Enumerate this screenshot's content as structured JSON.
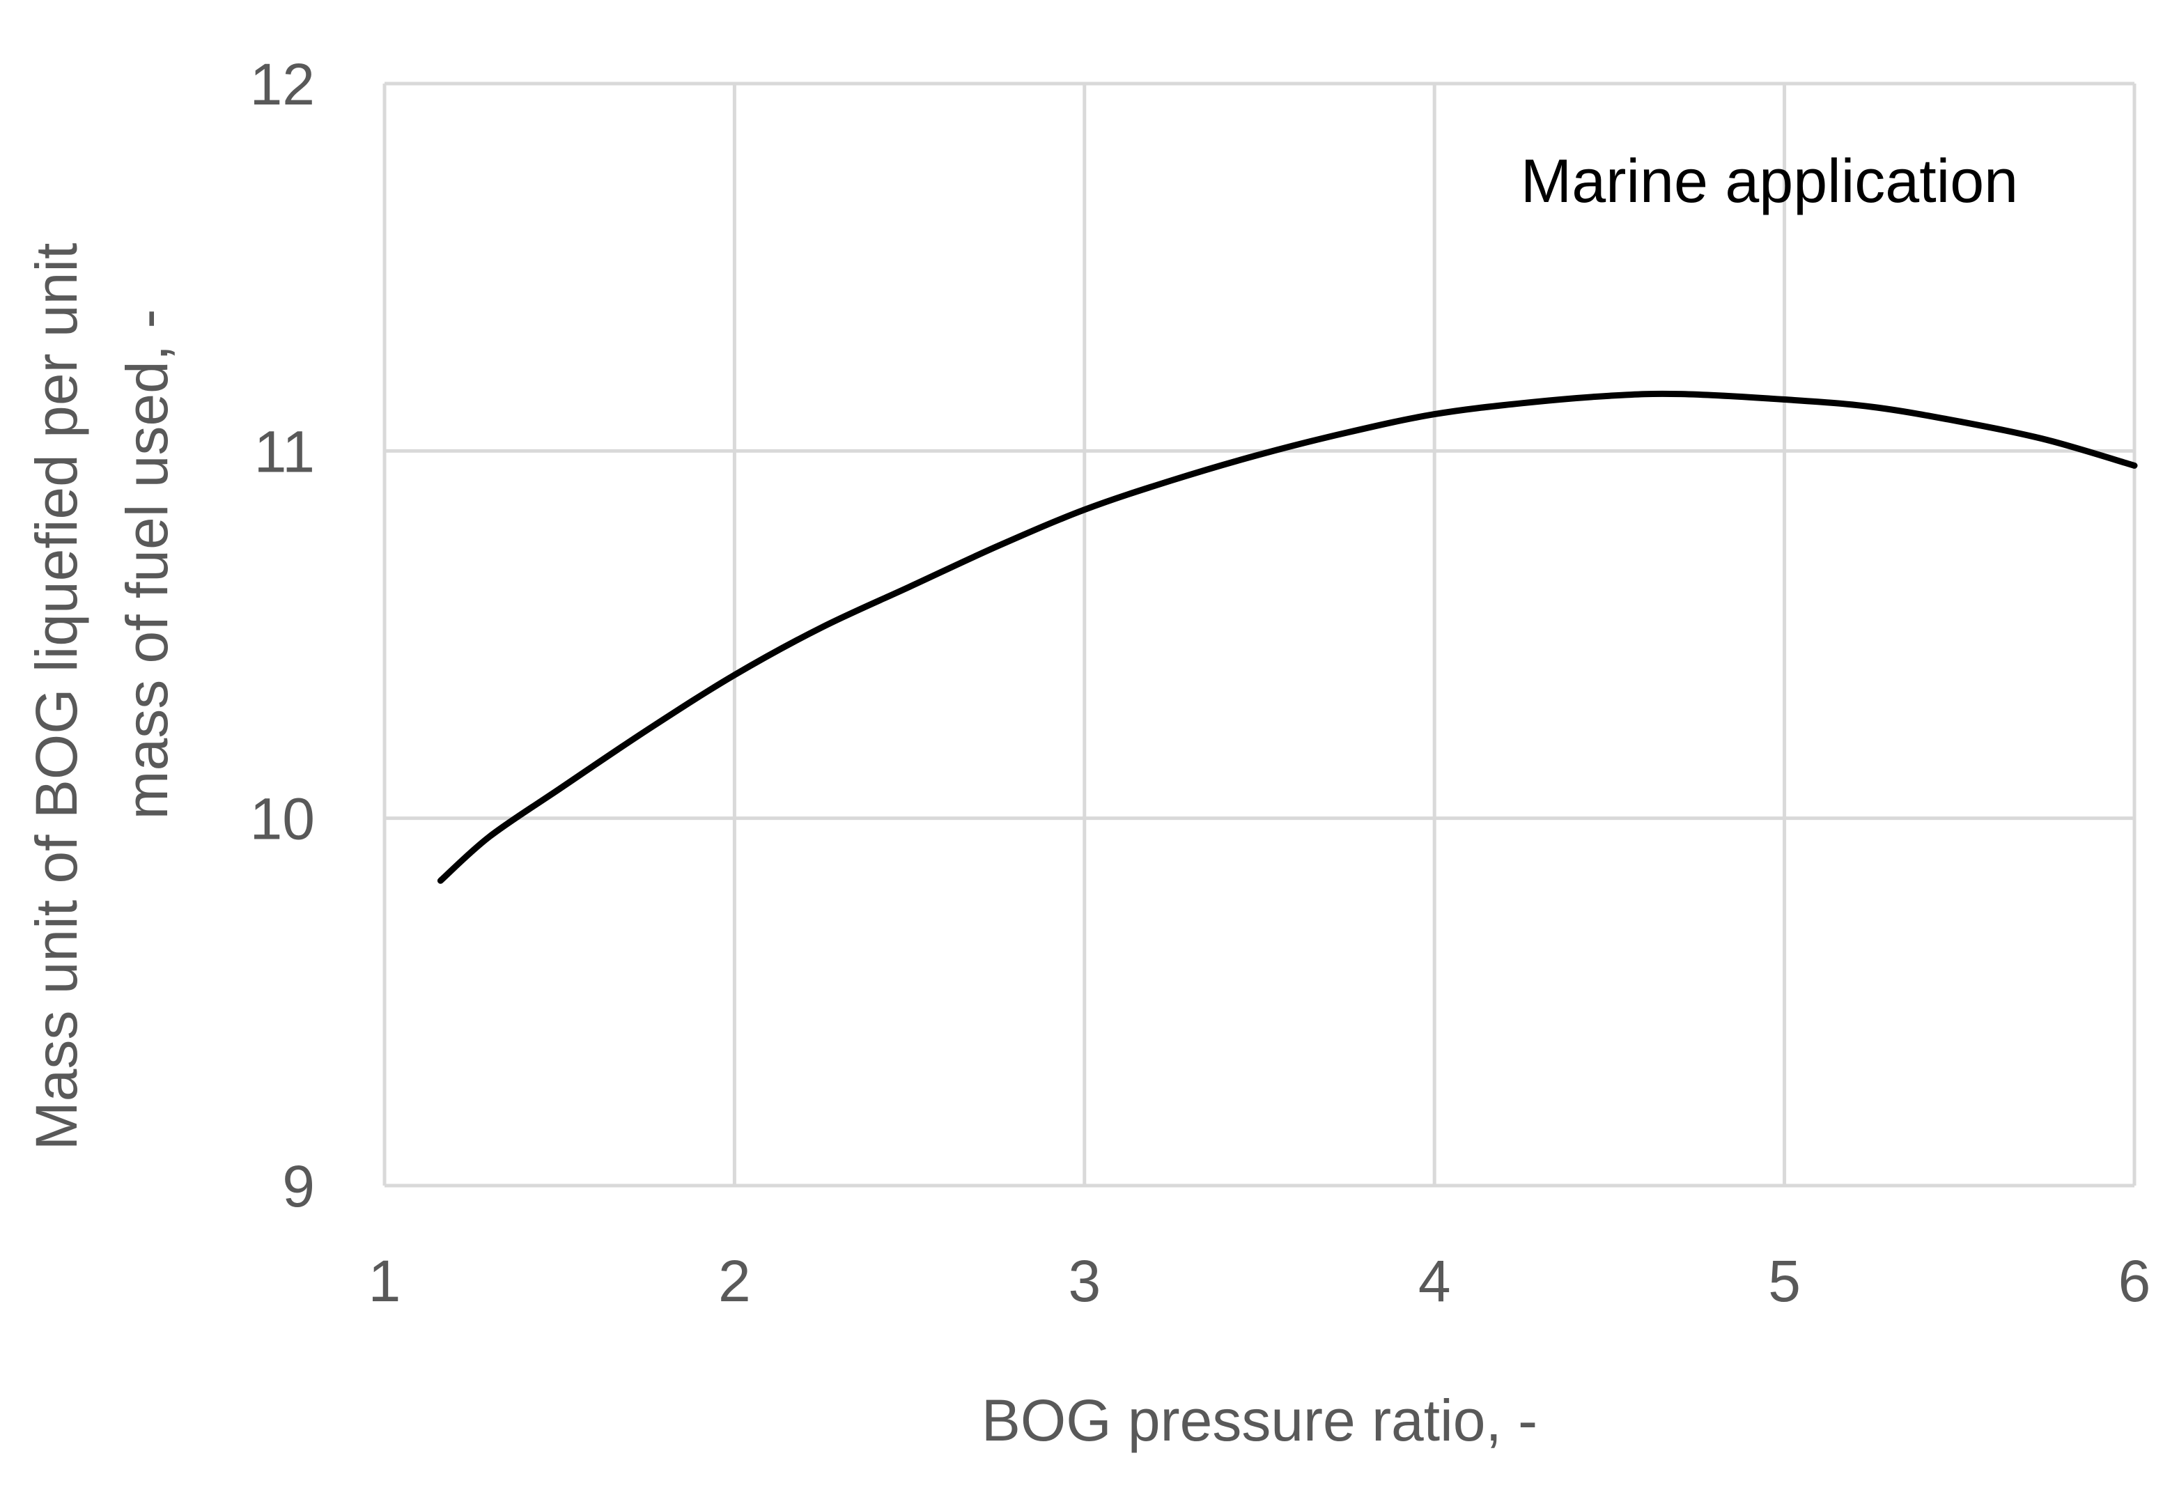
{
  "chart_data": {
    "type": "line",
    "title": "",
    "annotation": "Marine application",
    "xlabel": "BOG pressure ratio, -",
    "ylabel_lines": [
      "Mass unit of BOG liquefied per unit",
      "mass of fuel used, -"
    ],
    "xlim": [
      1,
      6
    ],
    "ylim": [
      9,
      12
    ],
    "x_ticks": [
      1,
      2,
      3,
      4,
      5,
      6
    ],
    "y_ticks": [
      9,
      10,
      11,
      12
    ],
    "x_tick_labels": [
      "1",
      "2",
      "3",
      "4",
      "5",
      "6"
    ],
    "y_tick_labels": [
      "9",
      "10",
      "11",
      "12"
    ],
    "grid": true,
    "legend": "none",
    "series": [
      {
        "color": "#000000",
        "x": [
          1.16,
          1.3,
          1.5,
          1.75,
          2.0,
          2.25,
          2.5,
          2.75,
          3.0,
          3.25,
          3.5,
          3.75,
          4.0,
          4.25,
          4.5,
          4.7,
          5.0,
          5.25,
          5.5,
          5.75,
          6.0
        ],
        "y": [
          9.83,
          9.95,
          10.08,
          10.24,
          10.39,
          10.52,
          10.63,
          10.74,
          10.84,
          10.92,
          10.99,
          11.05,
          11.1,
          11.13,
          11.15,
          11.155,
          11.14,
          11.12,
          11.08,
          11.03,
          10.96
        ]
      }
    ]
  }
}
